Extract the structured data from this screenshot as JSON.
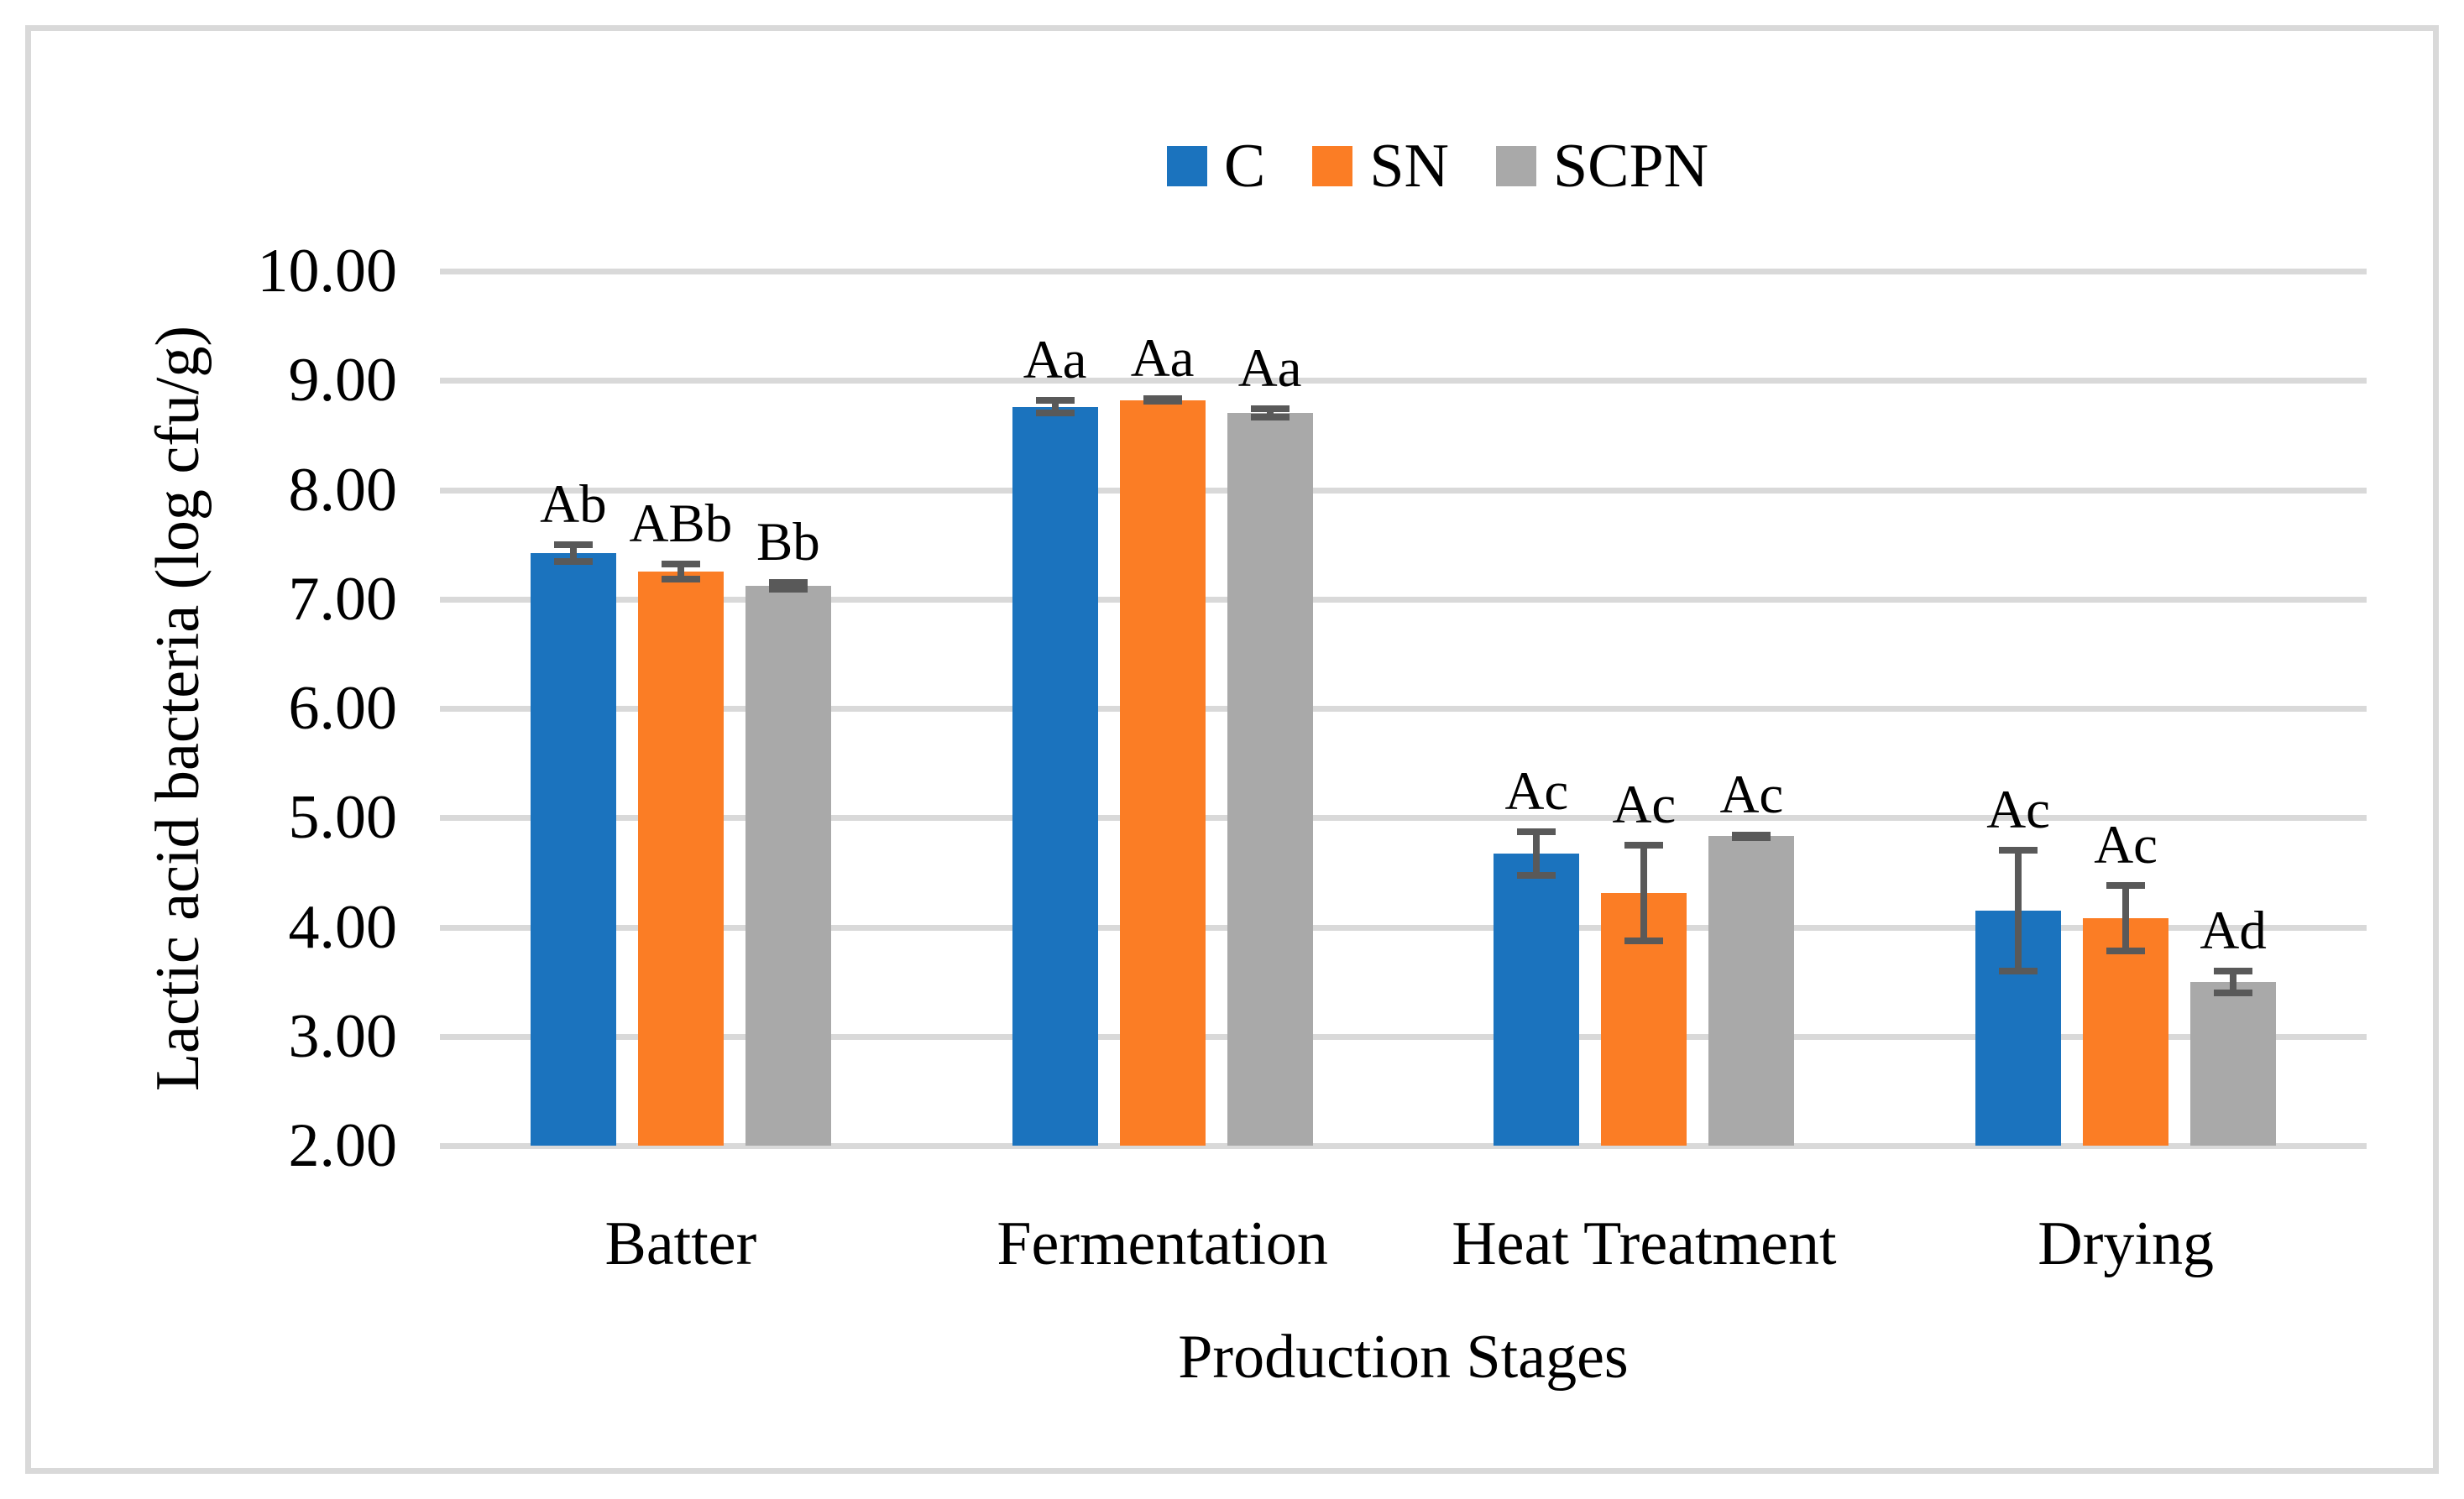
{
  "chart_data": {
    "type": "bar",
    "title": "",
    "xlabel": "Production Stages",
    "ylabel": "Lactic acid bacteria (log cfu/g)",
    "categories": [
      "Batter",
      "Fermentation",
      "Heat Treatment",
      "Drying"
    ],
    "series": [
      {
        "name": "C",
        "color": "#1b73be",
        "values": [
          7.42,
          8.76,
          4.67,
          4.15
        ],
        "errors": [
          0.11,
          0.09,
          0.23,
          0.58
        ],
        "labels": [
          "Ab",
          "Aa",
          "Ac",
          "Ac"
        ]
      },
      {
        "name": "SN",
        "color": "#fb7d25",
        "values": [
          7.25,
          8.82,
          4.31,
          4.08
        ],
        "errors": [
          0.1,
          0.04,
          0.47,
          0.33
        ],
        "labels": [
          "ABb",
          "Aa",
          "Ac",
          "Ac"
        ]
      },
      {
        "name": "SCPN",
        "color": "#a9a9a9",
        "values": [
          7.12,
          8.7,
          4.83,
          3.5
        ],
        "errors": [
          0.06,
          0.07,
          0.04,
          0.13
        ],
        "labels": [
          "Bb",
          "Aa",
          "Ac",
          "Ad"
        ]
      }
    ],
    "ylim": [
      2,
      10
    ],
    "ytick_step": 1,
    "ytick_labels": [
      "2.00",
      "3.00",
      "4.00",
      "5.00",
      "6.00",
      "7.00",
      "8.00",
      "9.00",
      "10.00"
    ],
    "grid": true,
    "legend_position": "top-center"
  },
  "colors": {
    "gridline": "#d9d9d9",
    "axis_line": "#d9d9d9",
    "error_bar": "#595959",
    "frame_border": "#d9d9d9",
    "text": "#000000",
    "background": "#ffffff"
  }
}
